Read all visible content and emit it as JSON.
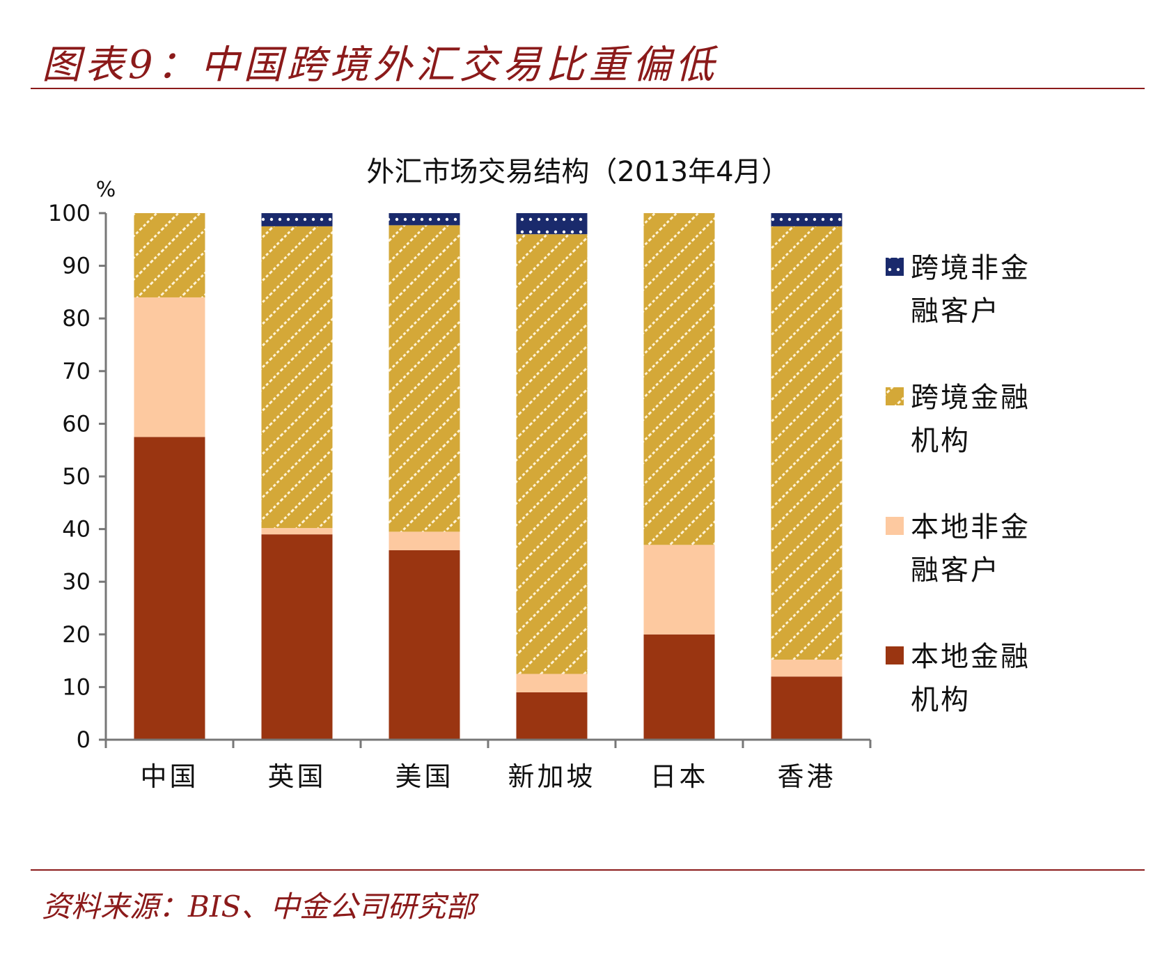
{
  "figure": {
    "title": "图表9：中国跨境外汇交易比重偏低",
    "source": "资料来源：BIS、中金公司研究部"
  },
  "colors": {
    "brand": "#8b1a1a",
    "local_fin": "#9a3511",
    "local_nonfin": "#fdc9a0",
    "cross_fin": "#d4a838",
    "cross_fin_stripe": "#fff3d6",
    "cross_nonfin": "#1a2a6c"
  },
  "chart_data": {
    "type": "bar",
    "stacked": true,
    "title": "外汇市场交易结构（2013年4月）",
    "ylabel": "%",
    "xlabel": "",
    "ylim": [
      0,
      100
    ],
    "yticks": [
      0,
      10,
      20,
      30,
      40,
      50,
      60,
      70,
      80,
      90,
      100
    ],
    "categories": [
      "中国",
      "英国",
      "美国",
      "新加坡",
      "日本",
      "香港"
    ],
    "series": [
      {
        "key": "local_fin",
        "name": "本地金融机构",
        "values": [
          57.5,
          39,
          36,
          9,
          20,
          12
        ]
      },
      {
        "key": "local_nonfin",
        "name": "本地非金融客户",
        "values": [
          26.5,
          1.2,
          3.5,
          3.5,
          17,
          3.2
        ]
      },
      {
        "key": "cross_fin",
        "name": "跨境金融机构",
        "values": [
          16,
          57.3,
          58.2,
          83.5,
          63,
          82.3
        ]
      },
      {
        "key": "cross_nonfin",
        "name": "跨境非金融客户",
        "values": [
          0,
          2.5,
          2.3,
          4,
          0,
          2.5
        ]
      }
    ],
    "legend_order": [
      "cross_nonfin",
      "cross_fin",
      "local_nonfin",
      "local_fin"
    ],
    "legend_lines": {
      "cross_nonfin": [
        "跨境非金",
        "融客户"
      ],
      "cross_fin": [
        "跨境金融",
        "机构"
      ],
      "local_nonfin": [
        "本地非金",
        "融客户"
      ],
      "local_fin": [
        "本地金融",
        "机构"
      ]
    },
    "legend_position": "right",
    "grid": false
  }
}
